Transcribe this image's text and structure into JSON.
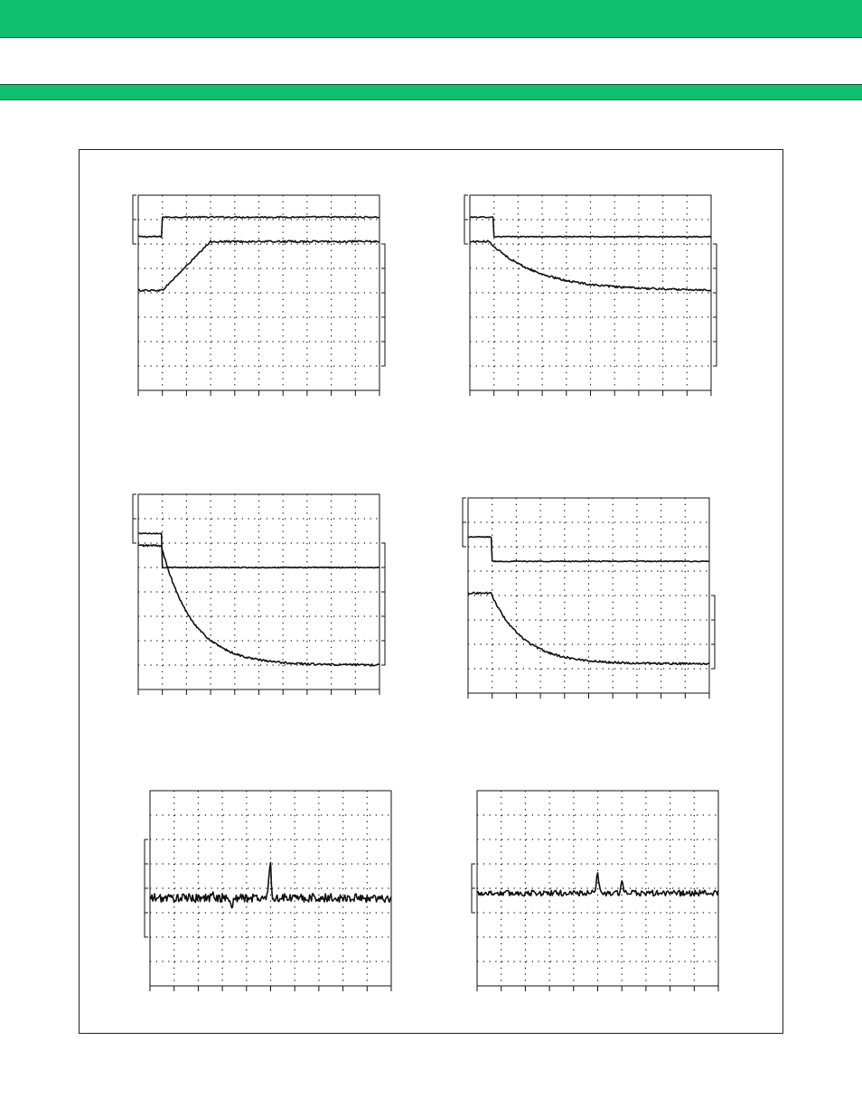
{
  "page": {
    "colors": {
      "band": "#0cc06e",
      "ink": "#111111",
      "background": "#ffffff"
    }
  },
  "chart_data": [
    {
      "type": "line",
      "ylabel": "",
      "xlabel": "",
      "grid": true,
      "xlim": [
        0,
        10
      ],
      "ylim": [
        0,
        8
      ],
      "divisions": {
        "x": 10,
        "y": 8
      },
      "series": [
        {
          "shape": "step-up",
          "x0": 1,
          "y_before": 6.3,
          "y_after": 7.1,
          "noise": 0.03
        },
        {
          "shape": "ramp-up",
          "x0": 1,
          "x1": 3,
          "y_before": 4.1,
          "y_after": 6.1,
          "noise": 0.04
        }
      ]
    },
    {
      "type": "line",
      "ylabel": "",
      "xlabel": "",
      "grid": true,
      "xlim": [
        0,
        10
      ],
      "ylim": [
        0,
        8
      ],
      "divisions": {
        "x": 10,
        "y": 8
      },
      "series": [
        {
          "shape": "step-down",
          "x0": 1,
          "y_before": 7.1,
          "y_after": 6.3,
          "noise": 0.02
        },
        {
          "shape": "decay",
          "x0": 0.8,
          "tau": 2.0,
          "y_before": 6.1,
          "y_after": 4.1,
          "noise": 0.04
        }
      ]
    },
    {
      "type": "line",
      "ylabel": "",
      "xlabel": "",
      "grid": true,
      "xlim": [
        0,
        10
      ],
      "ylim": [
        0,
        8
      ],
      "divisions": {
        "x": 10,
        "y": 8
      },
      "series": [
        {
          "shape": "step-down",
          "x0": 1,
          "y_before": 6.4,
          "y_after": 5.0,
          "noise": 0.02
        },
        {
          "shape": "decay",
          "x0": 0.95,
          "tau": 1.3,
          "y_before": 5.9,
          "y_after": 1.0,
          "noise": 0.04
        }
      ]
    },
    {
      "type": "line",
      "ylabel": "",
      "xlabel": "",
      "grid": true,
      "xlim": [
        0,
        10
      ],
      "ylim": [
        0,
        8
      ],
      "divisions": {
        "x": 10,
        "y": 8
      },
      "series": [
        {
          "shape": "step-down",
          "x0": 1,
          "y_before": 6.4,
          "y_after": 5.4,
          "noise": 0.02
        },
        {
          "shape": "decay",
          "x0": 0.95,
          "tau": 1.3,
          "y_before": 4.1,
          "y_after": 1.2,
          "noise": 0.04
        }
      ]
    },
    {
      "type": "line",
      "ylabel": "",
      "xlabel": "",
      "grid": true,
      "xlim": [
        0,
        10
      ],
      "ylim": [
        0,
        8
      ],
      "divisions": {
        "x": 10,
        "y": 8
      },
      "series": [
        {
          "shape": "noise",
          "level": 3.6,
          "noise": 0.18,
          "spikes": [
            {
              "x": 5.0,
              "dy": 1.8,
              "w": 0.08
            },
            {
              "x": 5.05,
              "dy": -1.0,
              "w": 0.05
            },
            {
              "x": 2.6,
              "dy": 0.4,
              "w": 0.05
            },
            {
              "x": 3.4,
              "dy": -0.5,
              "w": 0.05
            }
          ]
        }
      ]
    },
    {
      "type": "line",
      "ylabel": "",
      "xlabel": "",
      "grid": true,
      "xlim": [
        0,
        10
      ],
      "ylim": [
        0,
        8
      ],
      "divisions": {
        "x": 10,
        "y": 8
      },
      "series": [
        {
          "shape": "noise",
          "level": 3.8,
          "noise": 0.12,
          "spikes": [
            {
              "x": 5.0,
              "dy": 0.8,
              "w": 0.07
            },
            {
              "x": 6.0,
              "dy": 0.5,
              "w": 0.06
            }
          ]
        }
      ]
    }
  ]
}
